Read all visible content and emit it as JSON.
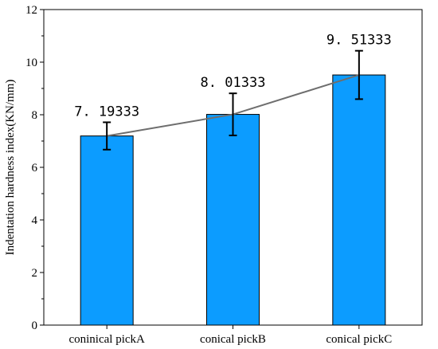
{
  "chart_data": {
    "type": "bar",
    "categories": [
      "coninical pickA",
      "conical pickB",
      "conical pickC"
    ],
    "values": [
      7.19333,
      8.01333,
      9.51333
    ],
    "error": [
      0.52,
      0.8,
      0.92
    ],
    "value_labels": [
      "7. 19333",
      "8. 01333",
      "9. 51333"
    ],
    "ylabel": "Indentation hardness index(KN/mm)",
    "xlabel": "",
    "ylim": [
      0,
      12
    ],
    "yticks": [
      0,
      2,
      4,
      6,
      8,
      10,
      12
    ],
    "trend_line": true,
    "grid": false,
    "colors": {
      "bar": "#0c9cff",
      "bar_edge": "#000000",
      "trend": "#6e6e6e",
      "error": "#000000"
    }
  }
}
